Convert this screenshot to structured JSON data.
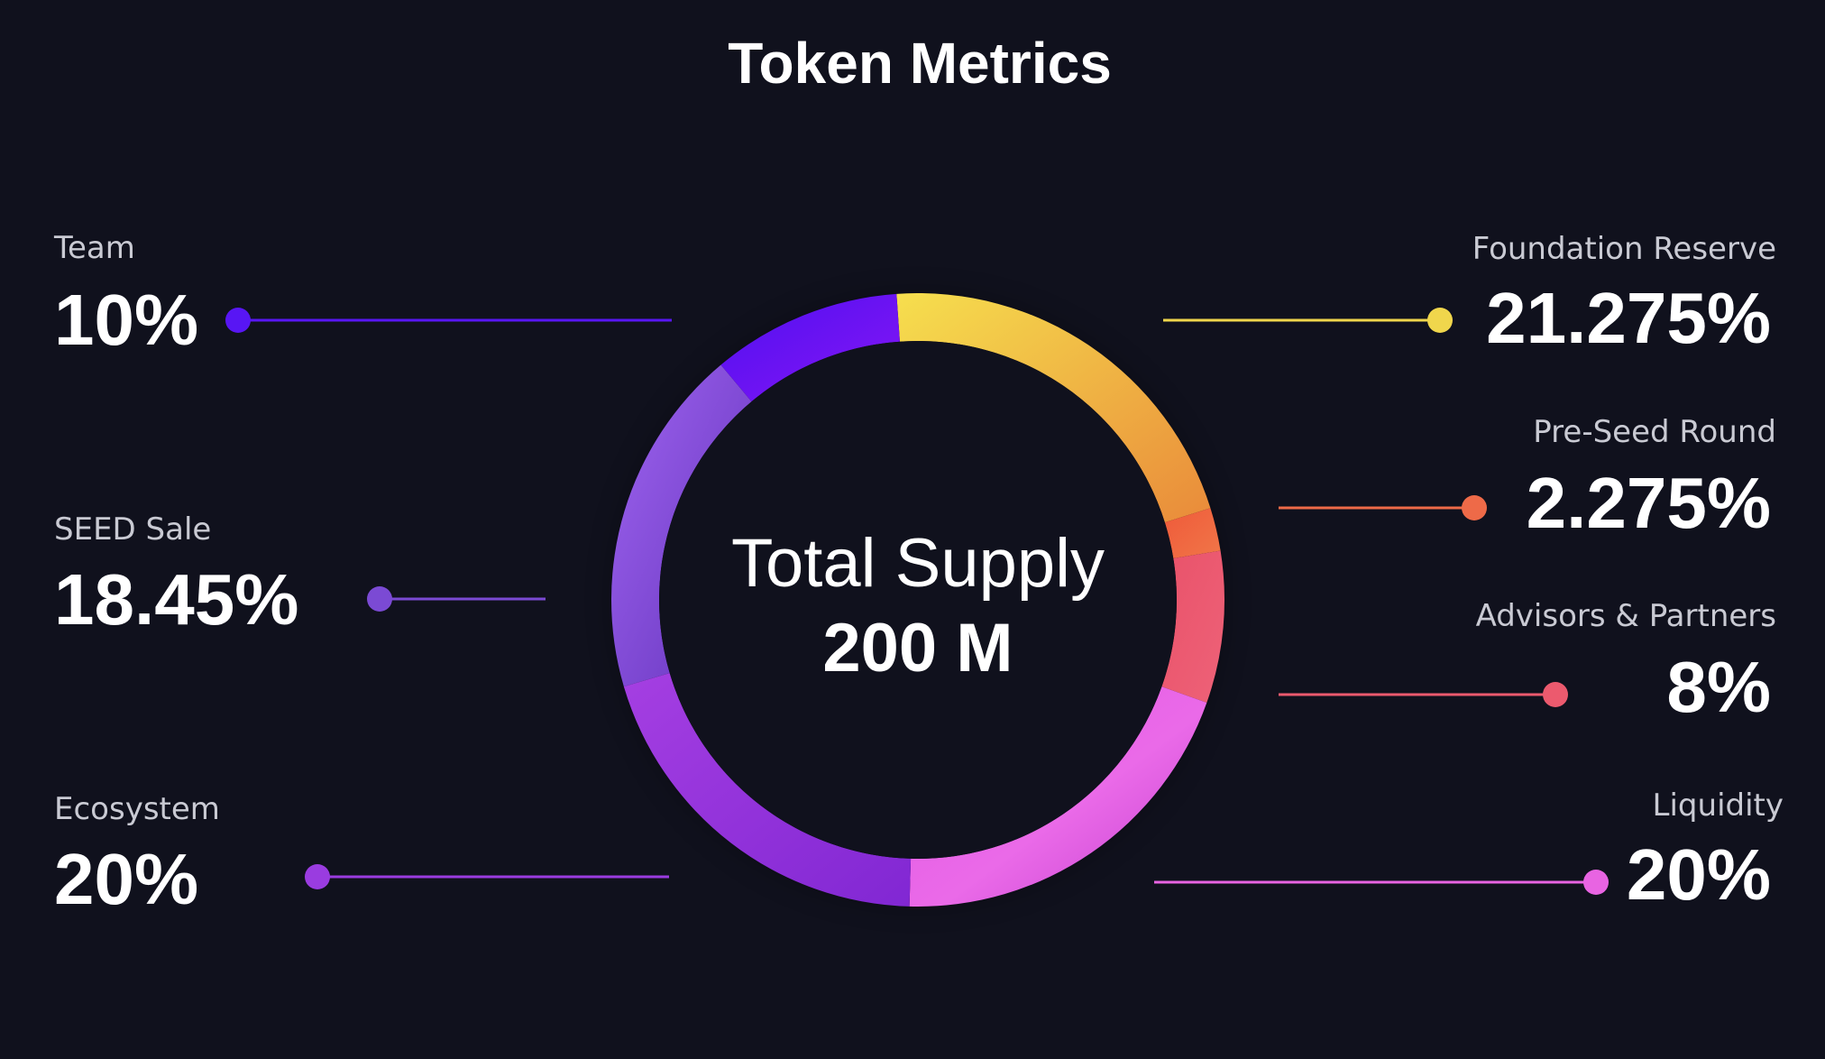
{
  "chart_data": {
    "type": "pie",
    "title": "Token Metrics",
    "center_label": "Total Supply",
    "center_value": "200 M",
    "categories": [
      "Foundation Reserve",
      "Pre-Seed Round",
      "Advisors & Partners",
      "Liquidity",
      "Ecosystem",
      "SEED Sale",
      "Team"
    ],
    "values": [
      21.275,
      2.275,
      8,
      20,
      20,
      18.45,
      10
    ],
    "value_labels": [
      "21.275%",
      "2.275%",
      "8%",
      "20%",
      "20%",
      "18.45%",
      "10%"
    ],
    "colors": [
      "#f0d64c",
      "#ee6a48",
      "#ec5a6e",
      "#e864e2",
      "#9a3ce0",
      "#7b4ad4",
      "#5816f4"
    ],
    "legend_placement": "sides"
  }
}
